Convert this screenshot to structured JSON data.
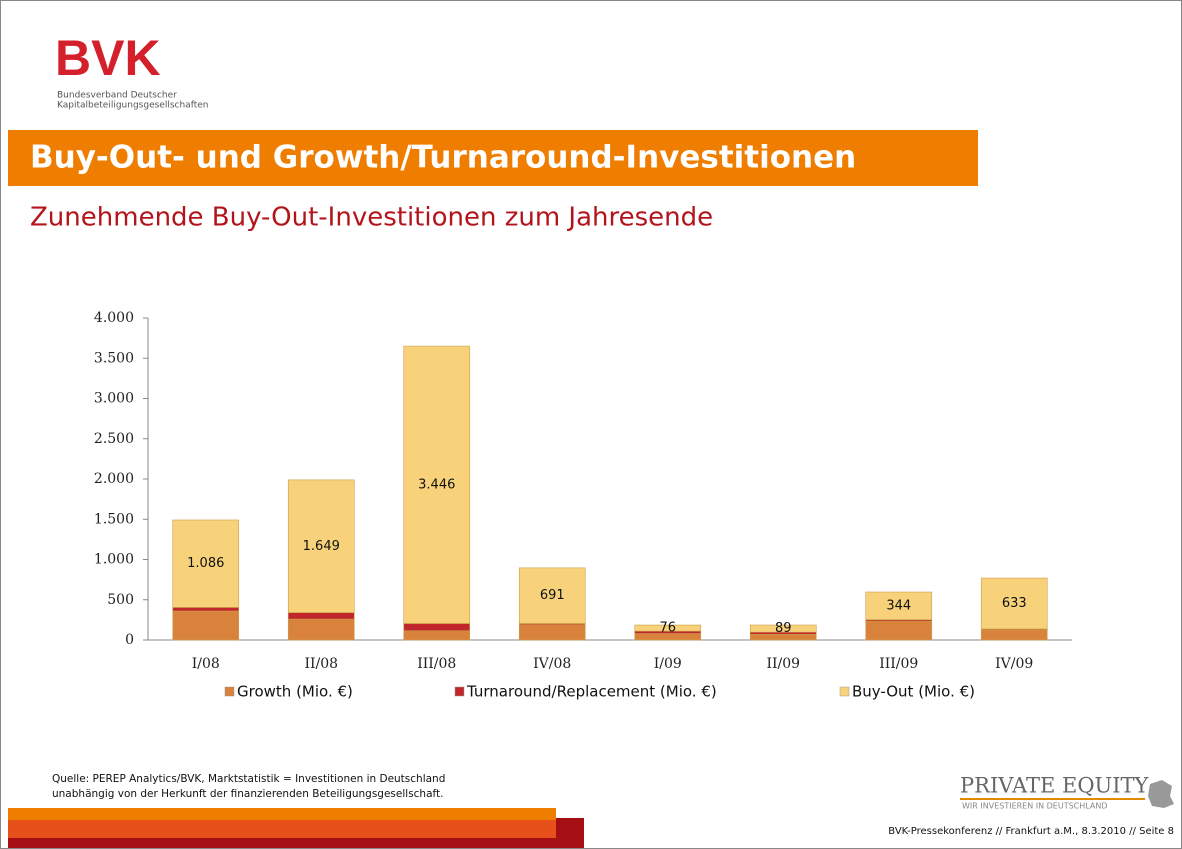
{
  "logo": {
    "name": "BVK",
    "line1": "Bundesverband Deutscher",
    "line2": "Kapitalbeteiligungsgesellschaften"
  },
  "header": {
    "title": "Buy-Out- und Growth/Turnaround-Investitionen",
    "subtitle": "Zunehmende Buy-Out-Investitionen zum Jahresende"
  },
  "chart_data": {
    "type": "stacked_bar",
    "categories": [
      "I/08",
      "II/08",
      "III/08",
      "IV/08",
      "I/09",
      "II/09",
      "III/09",
      "IV/09"
    ],
    "series": [
      {
        "name": "Growth (Mio. €)",
        "color": "#d9823b",
        "values": [
          360,
          260,
          115,
          190,
          80,
          70,
          235,
          125
        ]
      },
      {
        "name": "Turnaround/Replacement (Mio. €)",
        "color": "#c0262c",
        "values": [
          45,
          80,
          90,
          15,
          30,
          27,
          17,
          12
        ]
      },
      {
        "name": "Buy-Out (Mio. €)",
        "color": "#f8d27a",
        "values": [
          1086,
          1649,
          3446,
          691,
          76,
          89,
          344,
          633
        ],
        "value_labels": [
          "1.086",
          "1.649",
          "3.446",
          "691",
          "76",
          "89",
          "344",
          "633"
        ]
      }
    ],
    "ylim": [
      0,
      4000
    ],
    "yticks": [
      0,
      500,
      {
        "value": 1000,
        "label": "1.000"
      },
      {
        "value": 1500,
        "label": "1.500"
      },
      {
        "value": 2000,
        "label": "2.000"
      },
      {
        "value": 2500,
        "label": "2.500"
      },
      {
        "value": 3000,
        "label": "3.000"
      },
      {
        "value": 3500,
        "label": "3.500"
      },
      {
        "value": 4000,
        "label": "4.000"
      }
    ],
    "grid": false,
    "legend": "bottom"
  },
  "source": [
    "Quelle: PEREP Analytics/BVK, Marktstatistik = Investitionen in Deutschland",
    "unabhängig von der Herkunft der finanzierenden Beteiligungsgesellschaft."
  ],
  "brand": {
    "name": "PRIVATE EQUITY",
    "tagline": "WIR INVESTIEREN IN DEUTSCHLAND"
  },
  "footer": "BVK-Pressekonferenz // Frankfurt a.M., 8.3.2010 // Seite 8"
}
